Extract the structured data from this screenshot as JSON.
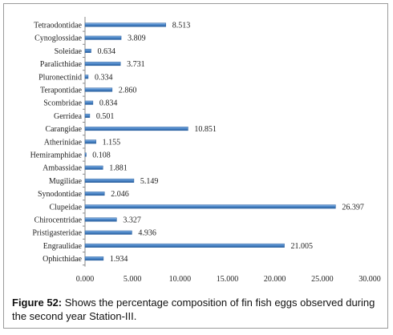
{
  "chart_data": {
    "type": "bar",
    "orientation": "horizontal",
    "categories": [
      "Tetraodontidae",
      "Cynoglossidae",
      "Soleidae",
      "Paralicthidae",
      "Pluronectinid",
      "Terapontidae",
      "Scombridae",
      "Gerridea",
      "Carangidae",
      "Atherinidae",
      "Hemiramphidae",
      "Ambassidae",
      "Mugilidae",
      "Synodontidae",
      "Clupeidae",
      "Chirocentridae",
      "Pristigasteridae",
      "Engraulidae",
      "Ophicthidae"
    ],
    "values": [
      8.513,
      3.809,
      0.634,
      3.731,
      0.334,
      2.86,
      0.834,
      0.501,
      10.851,
      1.155,
      0.108,
      1.881,
      5.149,
      2.046,
      26.397,
      3.327,
      4.936,
      21.005,
      1.934
    ],
    "value_labels": [
      "8.513",
      "3.809",
      "0.634",
      "3.731",
      "0.334",
      "2.860",
      "0.834",
      "0.501",
      "10.851",
      "1.155",
      "0.108",
      "1.881",
      "5.149",
      "2.046",
      "26.397",
      "3.327",
      "4.936",
      "21.005",
      "1.934"
    ],
    "xlim": [
      0,
      30
    ],
    "xticks": [
      "0.000",
      "5.000",
      "10.000",
      "15.000",
      "20.000",
      "25.000",
      "30.000"
    ],
    "grid": false,
    "legend": false,
    "bar_color": "#4a86c8",
    "bar_edge_color": "#2a5f9e"
  },
  "caption": {
    "label": "Figure 52:",
    "text": " Shows the percentage composition of fin fish eggs observed during the second year Station-III."
  }
}
